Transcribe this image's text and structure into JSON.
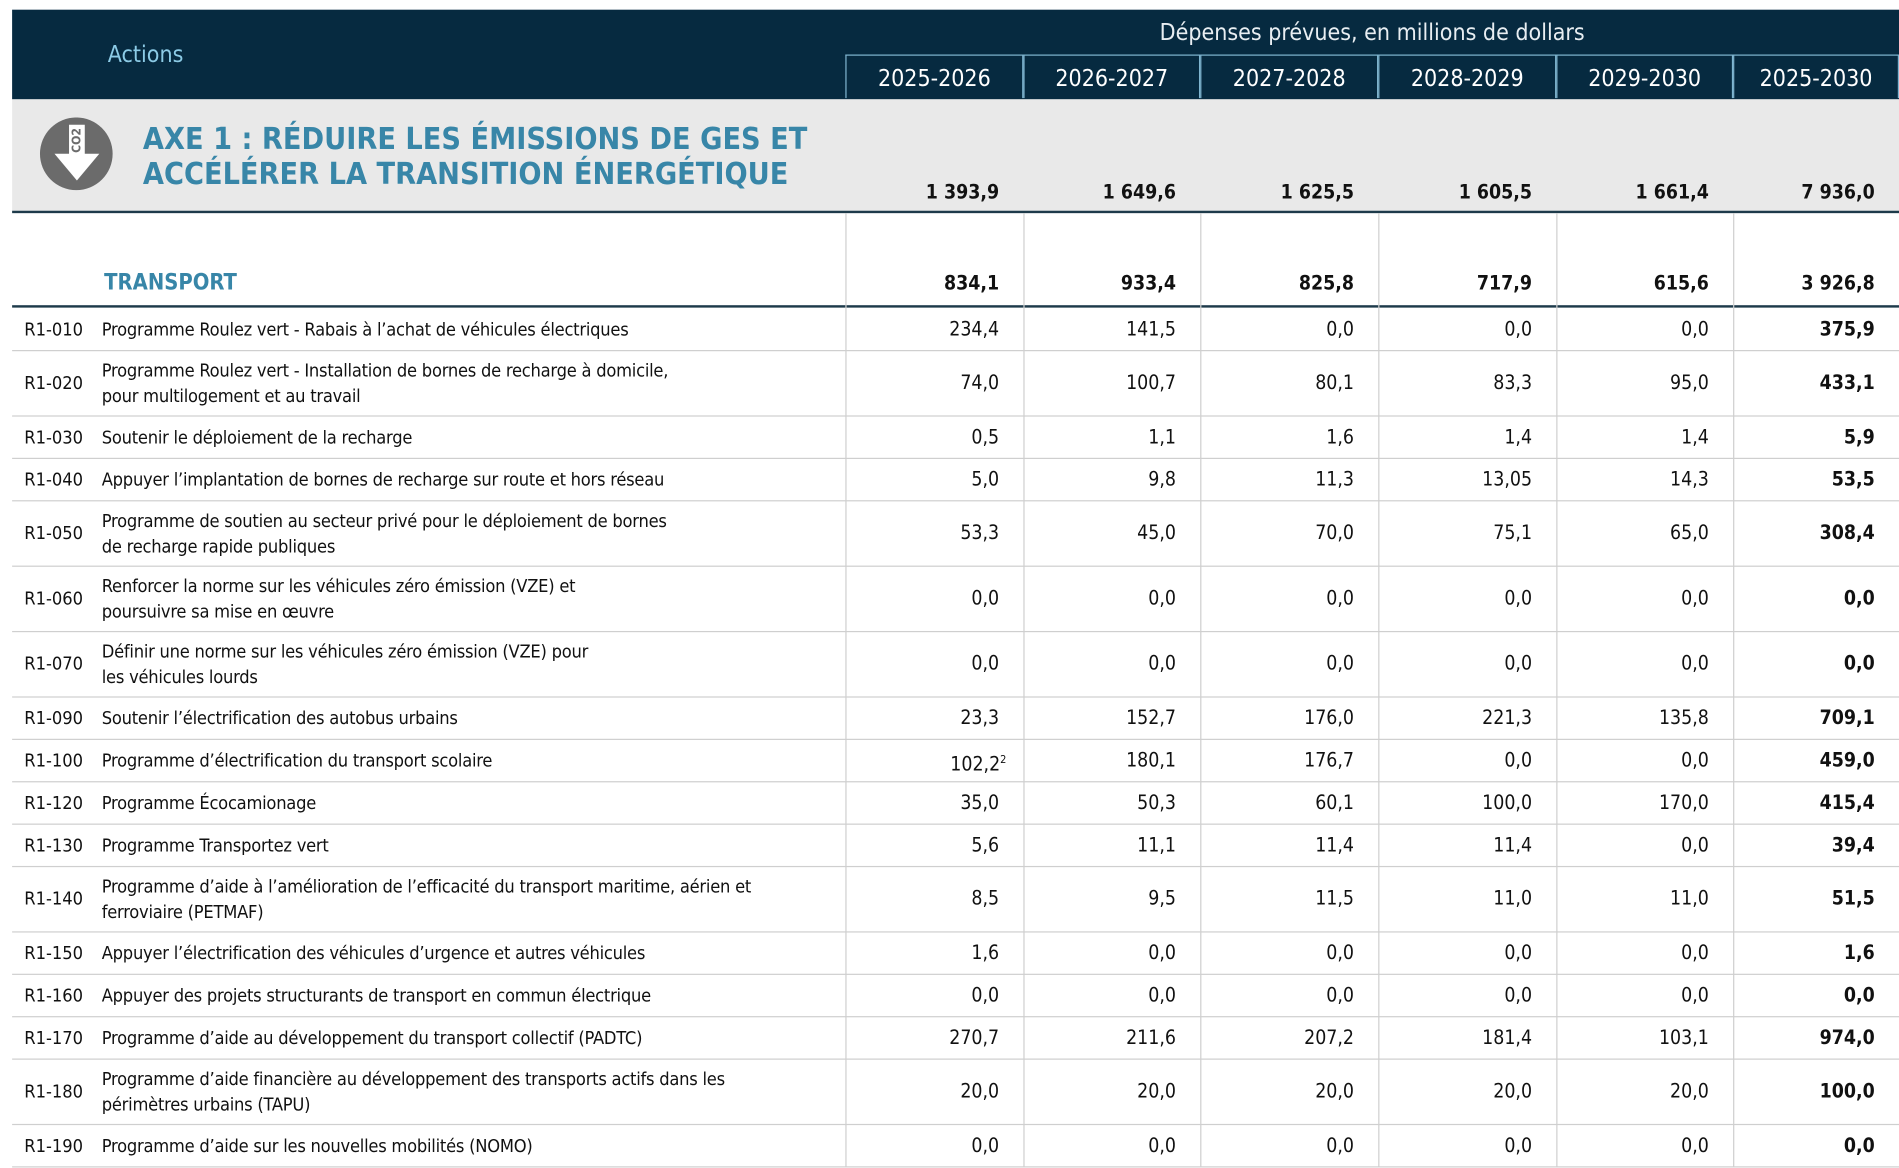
{
  "header": {
    "actions": "Actions",
    "title": "Dépenses prévues, en millions de dollars",
    "years": [
      "2025-2026",
      "2026-2027",
      "2027-2028",
      "2028-2029",
      "2029-2030",
      "2025-2030"
    ]
  },
  "axe": {
    "title": [
      "AXE 1 : RÉDUIRE LES ÉMISSIONS DE GES ET",
      "ACCÉLÉRER LA TRANSITION ÉNERGÉTIQUE"
    ],
    "icon": "CO2",
    "totals": [
      "1 393,9",
      "1 649,6",
      "1 625,5",
      "1 605,5",
      "1 661,4",
      "7 936,0"
    ]
  },
  "section": {
    "title": "TRANSPORT",
    "totals": [
      "834,1",
      "933,4",
      "825,8",
      "717,9",
      "615,6",
      "3 926,8"
    ]
  },
  "rows": [
    {
      "code": "R1-010",
      "label": [
        "Programme Roulez vert - Rabais à l’achat de véhicules électriques"
      ],
      "values": [
        "234,4",
        "141,5",
        "0,0",
        "0,0",
        "0,0",
        "375,9"
      ]
    },
    {
      "code": "R1-020",
      "label": [
        "Programme Roulez vert - Installation de bornes de recharge à domicile,",
        "pour multilogement et au travail"
      ],
      "values": [
        "74,0",
        "100,7",
        "80,1",
        "83,3",
        "95,0",
        "433,1"
      ]
    },
    {
      "code": "R1-030",
      "label": [
        "Soutenir le déploiement de la recharge"
      ],
      "values": [
        "0,5",
        "1,1",
        "1,6",
        "1,4",
        "1,4",
        "5,9"
      ]
    },
    {
      "code": "R1-040",
      "label": [
        "Appuyer l’implantation de bornes de recharge sur route et hors réseau"
      ],
      "values": [
        "5,0",
        "9,8",
        "11,3",
        "13,05",
        "14,3",
        "53,5"
      ]
    },
    {
      "code": "R1-050",
      "label": [
        "Programme de soutien au secteur privé pour le déploiement de bornes",
        "de recharge rapide publiques"
      ],
      "values": [
        "53,3",
        "45,0",
        "70,0",
        "75,1",
        "65,0",
        "308,4"
      ]
    },
    {
      "code": "R1-060",
      "label": [
        "Renforcer la norme sur les véhicules zéro émission (VZE) et",
        "poursuivre sa mise en œuvre"
      ],
      "values": [
        "0,0",
        "0,0",
        "0,0",
        "0,0",
        "0,0",
        "0,0"
      ]
    },
    {
      "code": "R1-070",
      "label": [
        "Définir une norme sur les véhicules zéro émission (VZE) pour",
        "les véhicules lourds"
      ],
      "values": [
        "0,0",
        "0,0",
        "0,0",
        "0,0",
        "0,0",
        "0,0"
      ]
    },
    {
      "code": "R1-090",
      "label": [
        "Soutenir l’électrification des autobus urbains"
      ],
      "values": [
        "23,3",
        "152,7",
        "176,0",
        "221,3",
        "135,8",
        "709,1"
      ]
    },
    {
      "code": "R1-100",
      "label": [
        "Programme d’électrification du transport scolaire"
      ],
      "values": [
        {
          "text": "102,2",
          "sup": "2"
        },
        "180,1",
        "176,7",
        "0,0",
        "0,0",
        "459,0"
      ]
    },
    {
      "code": "R1-120",
      "label": [
        "Programme Écocamionage"
      ],
      "values": [
        "35,0",
        "50,3",
        "60,1",
        "100,0",
        "170,0",
        "415,4"
      ]
    },
    {
      "code": "R1-130",
      "label": [
        "Programme Transportez vert"
      ],
      "values": [
        "5,6",
        "11,1",
        "11,4",
        "11,4",
        "0,0",
        "39,4"
      ]
    },
    {
      "code": "R1-140",
      "label": [
        "Programme d’aide à l’amélioration de l’efficacité du transport maritime, aérien et",
        "ferroviaire (PETMAF)"
      ],
      "values": [
        "8,5",
        "9,5",
        "11,5",
        "11,0",
        "11,0",
        "51,5"
      ]
    },
    {
      "code": "R1-150",
      "label": [
        "Appuyer l’électrification des véhicules d’urgence et autres véhicules"
      ],
      "values": [
        "1,6",
        "0,0",
        "0,0",
        "0,0",
        "0,0",
        "1,6"
      ]
    },
    {
      "code": "R1-160",
      "label": [
        "Appuyer des projets structurants de transport en commun électrique"
      ],
      "values": [
        "0,0",
        "0,0",
        "0,0",
        "0,0",
        "0,0",
        "0,0"
      ]
    },
    {
      "code": "R1-170",
      "label": [
        "Programme d’aide au développement du transport collectif (PADTC)"
      ],
      "values": [
        "270,7",
        "211,6",
        "207,2",
        "181,4",
        "103,1",
        "974,0"
      ]
    },
    {
      "code": "R1-180",
      "label": [
        "Programme d’aide financière au développement des transports actifs dans les",
        "périmètres urbains (TAPU)"
      ],
      "values": [
        "20,0",
        "20,0",
        "20,0",
        "20,0",
        "20,0",
        "100,0"
      ]
    },
    {
      "code": "R1-190",
      "label": [
        "Programme d’aide sur les nouvelles mobilités (NOMO)"
      ],
      "values": [
        "0,0",
        "0,0",
        "0,0",
        "0,0",
        "0,0",
        "0,0"
      ]
    }
  ]
}
